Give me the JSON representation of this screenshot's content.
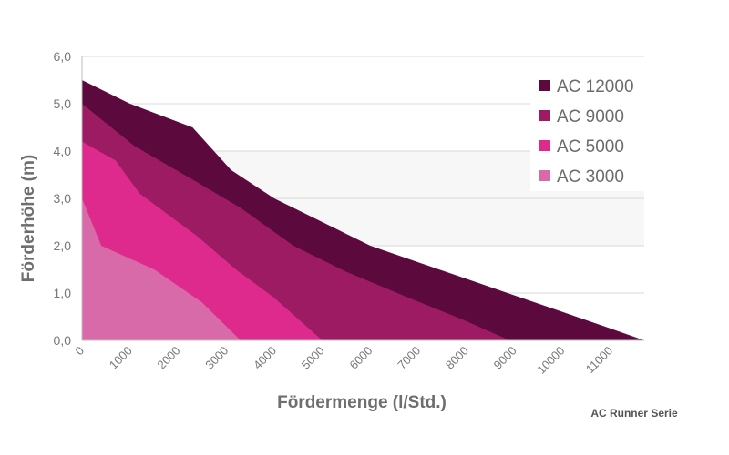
{
  "chart_data": {
    "type": "area",
    "title": "",
    "xlabel": "Fördermenge (l/Std.)",
    "ylabel": "Förderhöhe (m)",
    "xlim": [
      0,
      11700
    ],
    "ylim": [
      0,
      6
    ],
    "y_ticks": [
      "0,0",
      "1,0",
      "2,0",
      "3,0",
      "4,0",
      "5,0",
      "6,0"
    ],
    "y_tick_values": [
      0,
      1,
      2,
      3,
      4,
      5,
      6
    ],
    "x_ticks": [
      "0",
      "1000",
      "2000",
      "3000",
      "4000",
      "5000",
      "6000",
      "7000",
      "8000",
      "9000",
      "10000",
      "11000"
    ],
    "x_tick_values": [
      0,
      1000,
      2000,
      3000,
      4000,
      5000,
      6000,
      7000,
      8000,
      9000,
      10000,
      11000
    ],
    "grid": "horizontal",
    "legend_position": "top-right",
    "series": [
      {
        "name": "AC 12000",
        "color": "#5c0a3e",
        "points": [
          [
            0,
            5.5
          ],
          [
            1000,
            5.0
          ],
          [
            2300,
            4.5
          ],
          [
            3100,
            3.6
          ],
          [
            4000,
            3.0
          ],
          [
            5000,
            2.5
          ],
          [
            6000,
            2.0
          ],
          [
            7000,
            1.65
          ],
          [
            8000,
            1.3
          ],
          [
            9000,
            0.95
          ],
          [
            10000,
            0.6
          ],
          [
            11000,
            0.25
          ],
          [
            11700,
            0.0
          ]
        ]
      },
      {
        "name": "AC 9000",
        "color": "#9c1b62",
        "points": [
          [
            0,
            5.0
          ],
          [
            1100,
            4.1
          ],
          [
            2300,
            3.4
          ],
          [
            3300,
            2.8
          ],
          [
            4400,
            2.0
          ],
          [
            5500,
            1.45
          ],
          [
            6800,
            0.9
          ],
          [
            7900,
            0.45
          ],
          [
            8900,
            0.0
          ]
        ]
      },
      {
        "name": "AC 5000",
        "color": "#de2a8d",
        "points": [
          [
            0,
            4.2
          ],
          [
            700,
            3.8
          ],
          [
            1200,
            3.1
          ],
          [
            2400,
            2.2
          ],
          [
            3200,
            1.5
          ],
          [
            4000,
            0.9
          ],
          [
            5000,
            0.0
          ]
        ]
      },
      {
        "name": "AC 3000",
        "color": "#d96aa9",
        "points": [
          [
            0,
            3.0
          ],
          [
            400,
            2.0
          ],
          [
            1500,
            1.5
          ],
          [
            2500,
            0.8
          ],
          [
            3300,
            0.0
          ]
        ]
      }
    ]
  },
  "footnote": "AC Runner Serie"
}
